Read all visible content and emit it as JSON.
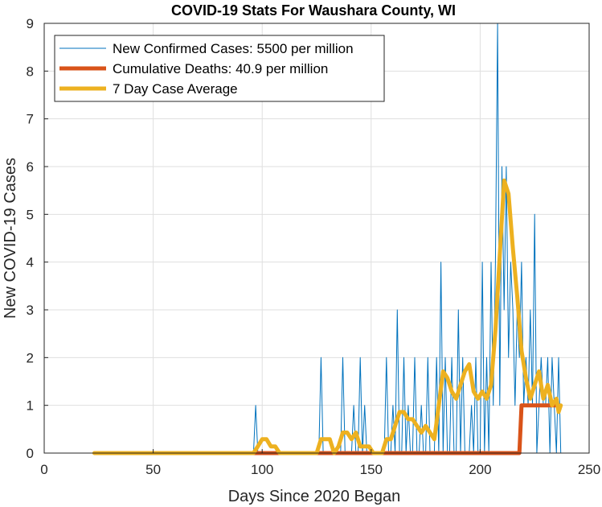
{
  "chart_data": {
    "type": "line",
    "title": "COVID-19 Stats For Waushara County, WI",
    "xlabel": "Days Since 2020 Began",
    "ylabel": "New COVID-19 Cases",
    "xlim": [
      0,
      250
    ],
    "ylim": [
      0,
      9
    ],
    "xticks": [
      "0",
      "50",
      "100",
      "150",
      "200",
      "250"
    ],
    "yticks": [
      "0",
      "1",
      "2",
      "3",
      "4",
      "5",
      "6",
      "7",
      "8",
      "9"
    ],
    "grid": true,
    "legend_position": "top-left",
    "series": [
      {
        "name": "New Confirmed Cases: 5500 per million",
        "color": "#0072BD",
        "style": "thin",
        "x": [
          23,
          96,
          97,
          98,
          99,
          126,
          127,
          128,
          136,
          137,
          138,
          139,
          140,
          141,
          142,
          143,
          144,
          145,
          146,
          147,
          148,
          149,
          150,
          155,
          156,
          157,
          158,
          159,
          160,
          161,
          162,
          163,
          164,
          165,
          166,
          167,
          168,
          169,
          170,
          171,
          172,
          173,
          174,
          175,
          176,
          177,
          178,
          179,
          180,
          181,
          182,
          183,
          184,
          185,
          186,
          187,
          188,
          189,
          190,
          191,
          192,
          193,
          194,
          195,
          196,
          197,
          198,
          199,
          200,
          201,
          202,
          203,
          204,
          205,
          206,
          207,
          208,
          209,
          210,
          211,
          212,
          213,
          214,
          215,
          216,
          217,
          218,
          219,
          220,
          221,
          222,
          223,
          224,
          225,
          226,
          227,
          228,
          229,
          230,
          231,
          232,
          233,
          234,
          235,
          236,
          237
        ],
        "y": [
          0,
          0,
          1,
          0,
          0,
          0,
          2,
          0,
          0,
          2,
          0,
          0,
          0,
          0,
          1,
          0,
          0,
          2,
          0,
          1,
          0,
          0,
          0,
          0,
          0,
          2,
          0,
          0,
          1,
          0,
          3,
          0,
          0,
          2,
          0,
          1,
          0,
          0,
          2,
          0,
          0,
          1,
          0,
          0,
          2,
          0,
          0,
          0,
          2,
          0,
          4,
          0,
          2,
          0,
          0,
          2,
          0,
          0,
          3,
          0,
          2,
          0,
          0,
          0,
          1,
          0,
          2,
          0,
          0,
          4,
          0,
          2,
          0,
          4,
          1,
          4,
          9,
          1,
          6,
          3,
          6,
          2,
          4,
          3,
          1,
          3,
          2,
          4,
          1,
          2,
          1,
          3,
          1,
          5,
          0,
          1,
          2,
          1,
          1,
          2,
          0,
          2,
          1,
          0,
          2,
          0
        ]
      },
      {
        "name": "Cumulative Deaths: 40.9 per million",
        "color": "#D95319",
        "style": "thick",
        "x": [
          96,
          218,
          219,
          236
        ],
        "y": [
          0,
          0,
          1,
          1
        ]
      },
      {
        "name": "7 Day Case Average",
        "color": "#EDB120",
        "style": "thick",
        "x": [
          23,
          96,
          98,
          100,
          102,
          104,
          106,
          108,
          125,
          127,
          129,
          131,
          133,
          135,
          137,
          139,
          141,
          143,
          145,
          147,
          149,
          151,
          153,
          155,
          157,
          159,
          161,
          163,
          165,
          167,
          169,
          171,
          173,
          175,
          177,
          179,
          181,
          183,
          185,
          187,
          189,
          191,
          193,
          195,
          197,
          199,
          201,
          203,
          205,
          207,
          209,
          211,
          213,
          215,
          217,
          219,
          221,
          223,
          225,
          227,
          229,
          231,
          233,
          235,
          236,
          237
        ],
        "y": [
          0,
          0,
          0.14,
          0.29,
          0.29,
          0.14,
          0.14,
          0,
          0,
          0.29,
          0.29,
          0.29,
          0,
          0.14,
          0.43,
          0.43,
          0.29,
          0.43,
          0.14,
          0.14,
          0.14,
          0,
          0,
          0,
          0.29,
          0.29,
          0.57,
          0.86,
          0.86,
          0.71,
          0.71,
          0.57,
          0.43,
          0.57,
          0.43,
          0.29,
          1,
          1.71,
          1.57,
          1.29,
          1.14,
          1.43,
          1.71,
          1.86,
          1.29,
          1.14,
          1.29,
          1.14,
          1.43,
          2.57,
          4.14,
          5.71,
          5.43,
          4.29,
          3.29,
          2.14,
          1.57,
          1.14,
          1.43,
          1.71,
          1.14,
          1.43,
          1,
          1.14,
          0.86,
          1
        ]
      }
    ]
  }
}
